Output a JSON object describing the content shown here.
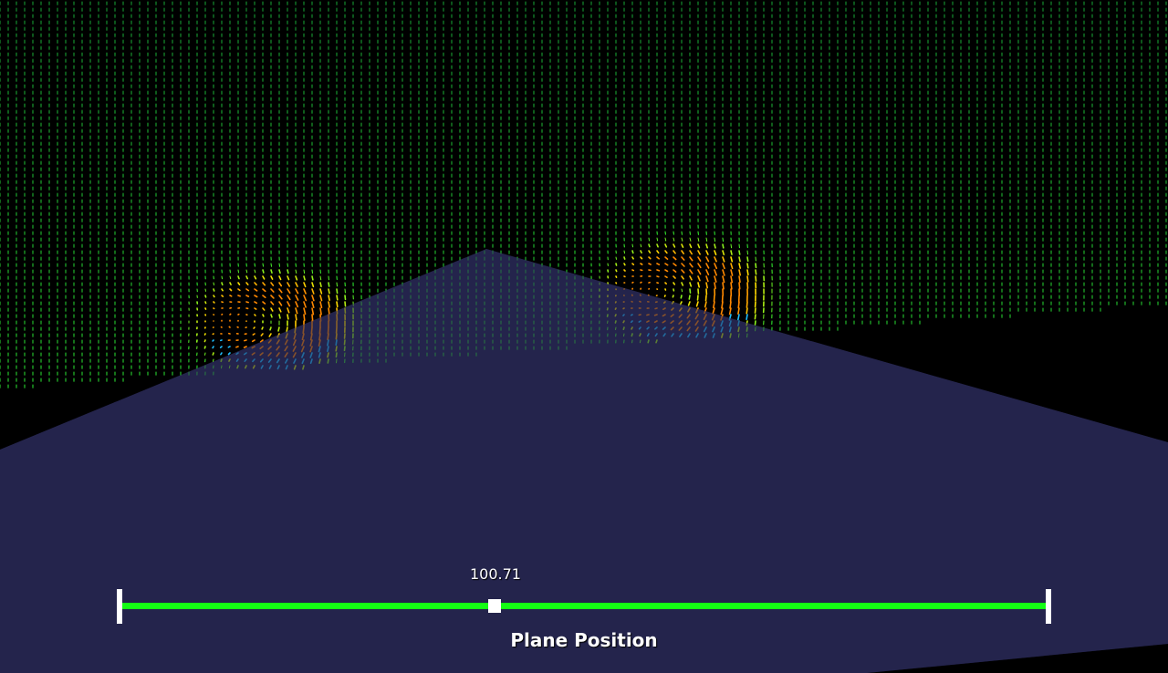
{
  "slider": {
    "value_text": "100.71",
    "title": "Plane Position",
    "fraction": 0.404
  },
  "colors": {
    "background": "#000000",
    "ground_plane": "#25244d",
    "slider_track": "#14ff14",
    "slider_handle": "#ffffff",
    "glyph_low": "#0a7a3a",
    "glyph_mid": "#33ff33",
    "glyph_high": "#ffe000",
    "glyph_peak": "#ff8800",
    "glyph_cold": "#20c0ff"
  }
}
